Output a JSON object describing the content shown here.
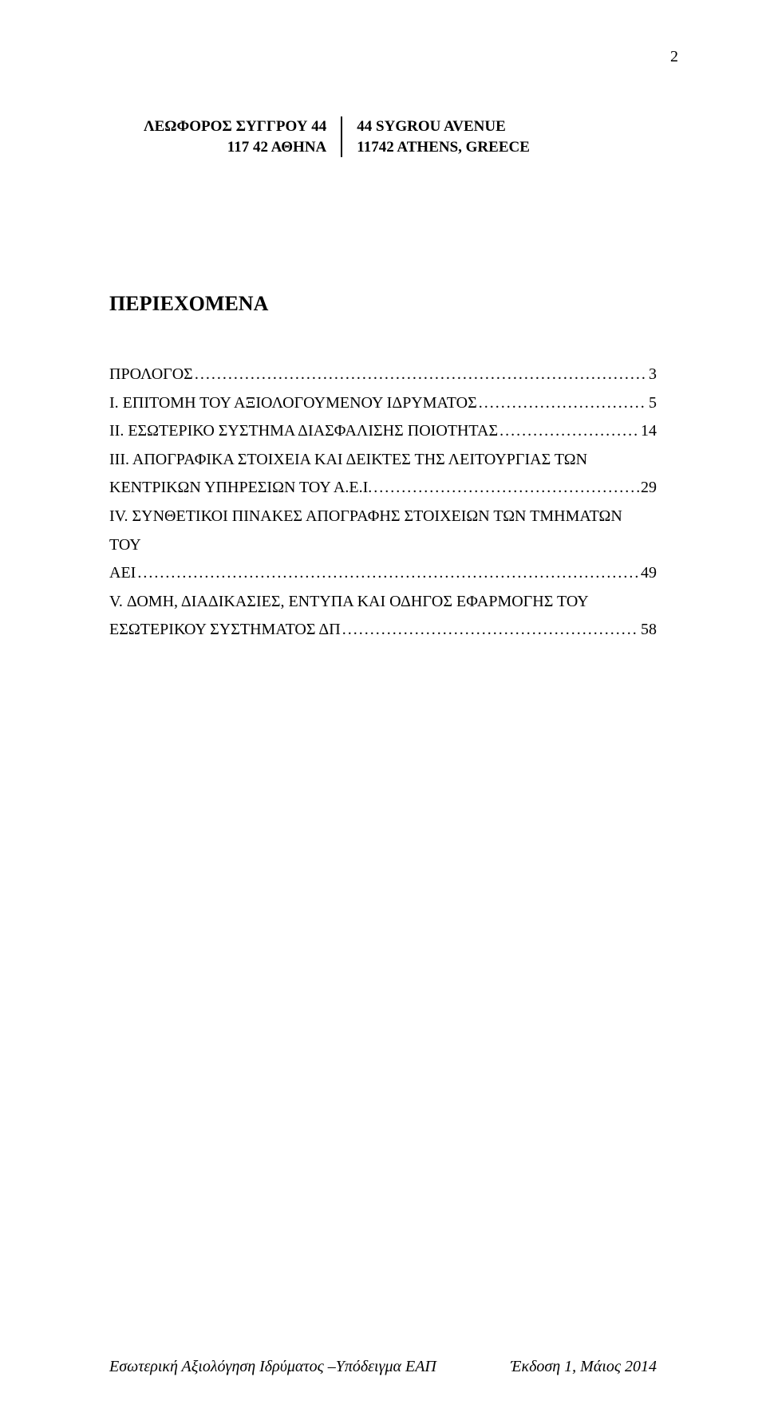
{
  "page_number": "2",
  "address": {
    "left_line1": "ΛΕΩΦΟΡΟΣ ΣΥΓΓΡΟΥ 44",
    "left_line2": "117 42 ΑΘΗΝΑ",
    "right_line1": "44 SYGROU AVENUE",
    "right_line2": "11742 ATHENS, GREECE"
  },
  "section_title": "ΠΕΡΙΕΧΟΜΕΝΑ",
  "toc": {
    "entry1_label": "ΠΡΟΛΟΓΟΣ",
    "entry1_page": "3",
    "entry2_label": "Ι. ΕΠΙΤΟΜΗ ΤΟΥ ΑΞΙΟΛΟΓΟΥΜΕΝΟΥ ΙΔΡΥΜΑΤΟΣ",
    "entry2_page": "5",
    "entry3_label": "ΙΙ. ΕΣΩΤΕΡΙΚΟ ΣΥΣΤΗΜΑ ΔΙΑΣΦΑΛΙΣΗΣ ΠΟΙΟΤΗΤΑΣ",
    "entry3_page": "14",
    "entry4_line1": "ΙΙΙ. ΑΠΟΓΡΑΦΙΚΑ ΣΤΟΙΧΕΙΑ  ΚΑΙ ΔΕΙΚΤΕΣ ΤΗΣ ΛΕΙΤΟΥΡΓΙΑΣ ΤΩΝ",
    "entry4_line2": "ΚΕΝΤΡΙΚΩΝ ΥΠΗΡΕΣΙΩΝ ΤΟΥ Α.Ε.Ι.",
    "entry4_page": "29",
    "entry5_line1": "ΙV. ΣΥΝΘΕΤΙΚΟΙ ΠΙΝΑΚΕΣ ΑΠΟΓΡΑΦΗΣ ΣΤΟΙΧΕΙΩΝ ΤΩΝ ΤΜΗΜΑΤΩΝ ΤΟΥ",
    "entry5_line2": "ΑΕΙ",
    "entry5_page": "49",
    "entry6_line1": "V. ΔΟΜΗ, ΔΙΑΔΙΚΑΣΙΕΣ, ΕΝΤΥΠΑ ΚΑΙ ΟΔΗΓΟΣ ΕΦΑΡΜΟΓΗΣ ΤΟΥ",
    "entry6_line2": "ΕΣΩΤΕΡΙΚΟΥ ΣΥΣΤΗΜΑΤΟΣ ΔΠ",
    "entry6_page": "58"
  },
  "leader": "...........................................................................................................................................................................",
  "footer": {
    "left": "Εσωτερική Αξιολόγηση Ιδρύματος –Υπόδειγμα ΕΑΠ",
    "right": "Έκδοση 1, Μάιος 2014"
  }
}
